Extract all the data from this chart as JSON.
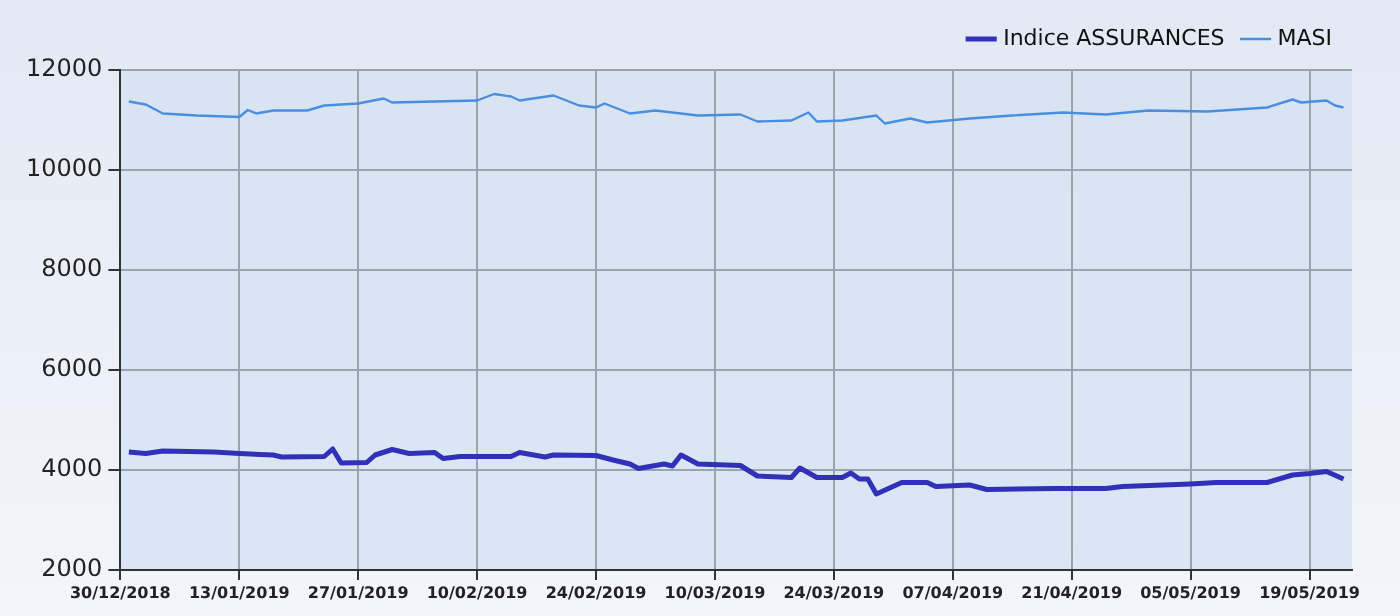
{
  "chart_data": {
    "type": "line",
    "legend": "top right",
    "grid": true,
    "marker": "none",
    "line_style": "solid",
    "xlim": [
      "2018-12-30",
      "2019-05-24"
    ],
    "xticks": [
      {
        "value": "2018-12-30",
        "label": "30/12/2018"
      },
      {
        "value": "2019-01-13",
        "label": "13/01/2019"
      },
      {
        "value": "2019-01-27",
        "label": "27/01/2019"
      },
      {
        "value": "2019-02-10",
        "label": "10/02/2019"
      },
      {
        "value": "2019-02-24",
        "label": "24/02/2019"
      },
      {
        "value": "2019-03-10",
        "label": "10/03/2019"
      },
      {
        "value": "2019-03-24",
        "label": "24/03/2019"
      },
      {
        "value": "2019-04-07",
        "label": "07/04/2019"
      },
      {
        "value": "2019-04-21",
        "label": "21/04/2019"
      },
      {
        "value": "2019-05-05",
        "label": "05/05/2019"
      },
      {
        "value": "2019-05-19",
        "label": "19/05/2019"
      }
    ],
    "ylim": [
      2000,
      12000
    ],
    "yticks": [
      2000,
      4000,
      6000,
      8000,
      10000,
      12000
    ],
    "series": [
      {
        "name": "Indice ASSURANCES",
        "color": "#3030b8",
        "x": [
          "2018-12-31",
          "2019-01-02",
          "2019-01-04",
          "2019-01-10",
          "2019-01-13",
          "2019-01-17",
          "2019-01-18",
          "2019-01-23",
          "2019-01-24",
          "2019-01-25",
          "2019-01-28",
          "2019-01-29",
          "2019-01-31",
          "2019-02-02",
          "2019-02-05",
          "2019-02-06",
          "2019-02-08",
          "2019-02-14",
          "2019-02-15",
          "2019-02-18",
          "2019-02-19",
          "2019-02-24",
          "2019-02-26",
          "2019-02-28",
          "2019-03-01",
          "2019-03-04",
          "2019-03-05",
          "2019-03-06",
          "2019-03-08",
          "2019-03-13",
          "2019-03-15",
          "2019-03-19",
          "2019-03-20",
          "2019-03-22",
          "2019-03-25",
          "2019-03-26",
          "2019-03-27",
          "2019-03-28",
          "2019-03-29",
          "2019-04-01",
          "2019-04-04",
          "2019-04-05",
          "2019-04-09",
          "2019-04-11",
          "2019-04-19",
          "2019-04-25",
          "2019-04-27",
          "2019-05-05",
          "2019-05-08",
          "2019-05-14",
          "2019-05-17",
          "2019-05-19",
          "2019-05-21",
          "2019-05-23"
        ],
        "values": [
          4360,
          4330,
          4380,
          4360,
          4330,
          4300,
          4260,
          4270,
          4420,
          4140,
          4150,
          4300,
          4410,
          4330,
          4350,
          4230,
          4270,
          4270,
          4350,
          4260,
          4300,
          4290,
          4200,
          4120,
          4030,
          4120,
          4080,
          4300,
          4120,
          4090,
          3880,
          3850,
          4040,
          3850,
          3850,
          3940,
          3820,
          3820,
          3520,
          3750,
          3750,
          3670,
          3700,
          3610,
          3630,
          3630,
          3670,
          3720,
          3750,
          3750,
          3900,
          3930,
          3970,
          3820
        ]
      },
      {
        "name": "MASI",
        "color": "#4a8ee0",
        "x": [
          "2018-12-31",
          "2019-01-02",
          "2019-01-04",
          "2019-01-08",
          "2019-01-13",
          "2019-01-14",
          "2019-01-15",
          "2019-01-17",
          "2019-01-21",
          "2019-01-23",
          "2019-01-27",
          "2019-01-30",
          "2019-01-31",
          "2019-02-10",
          "2019-02-12",
          "2019-02-14",
          "2019-02-15",
          "2019-02-19",
          "2019-02-22",
          "2019-02-24",
          "2019-02-25",
          "2019-02-28",
          "2019-03-03",
          "2019-03-08",
          "2019-03-13",
          "2019-03-15",
          "2019-03-19",
          "2019-03-21",
          "2019-03-22",
          "2019-03-25",
          "2019-03-29",
          "2019-03-30",
          "2019-04-02",
          "2019-04-04",
          "2019-04-09",
          "2019-04-14",
          "2019-04-20",
          "2019-04-25",
          "2019-04-30",
          "2019-05-07",
          "2019-05-14",
          "2019-05-17",
          "2019-05-18",
          "2019-05-21",
          "2019-05-22",
          "2019-05-23"
        ],
        "values": [
          11370,
          11310,
          11130,
          11090,
          11060,
          11200,
          11130,
          11190,
          11190,
          11290,
          11330,
          11430,
          11350,
          11390,
          11520,
          11470,
          11390,
          11490,
          11290,
          11250,
          11330,
          11130,
          11190,
          11090,
          11110,
          10970,
          10990,
          11150,
          10970,
          10990,
          11090,
          10930,
          11030,
          10950,
          11030,
          11090,
          11150,
          11110,
          11190,
          11170,
          11250,
          11410,
          11350,
          11390,
          11290,
          11250
        ]
      }
    ]
  }
}
